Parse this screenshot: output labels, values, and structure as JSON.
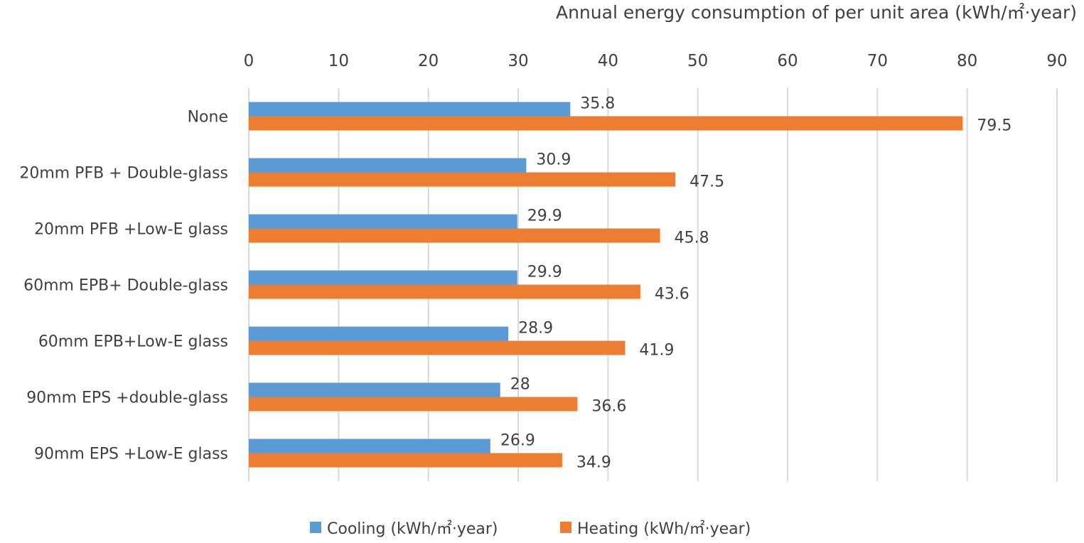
{
  "chart_data": {
    "type": "bar",
    "orientation": "horizontal",
    "title": "",
    "xlabel": "Annual energy consumption of per unit area (kWh/㎡·year)",
    "ylabel": "",
    "xlim": [
      0,
      90
    ],
    "xticks": [
      0,
      10,
      20,
      30,
      40,
      50,
      60,
      70,
      80,
      90
    ],
    "x_axis_position": "top",
    "grid": true,
    "legend_position": "bottom",
    "categories": [
      "None",
      "20mm PFB + Double-glass",
      "20mm PFB +Low-E glass",
      "60mm EPB+ Double-glass",
      "60mm EPB+Low-E glass",
      "90mm EPS +double-glass",
      "90mm EPS +Low-E glass"
    ],
    "series": [
      {
        "name": "Cooling (kWh/㎡·year)",
        "color": "#5b9bd5",
        "values": [
          35.8,
          30.9,
          29.9,
          29.9,
          28.9,
          28,
          26.9
        ],
        "labels": [
          "35.8",
          "30.9",
          "29.9",
          "29.9",
          "28.9",
          "28",
          "26.9"
        ]
      },
      {
        "name": "Heating (kWh/㎡·year)",
        "color": "#ed7d31",
        "values": [
          79.5,
          47.5,
          45.8,
          43.6,
          41.9,
          36.6,
          34.9
        ],
        "labels": [
          "79.5",
          "47.5",
          "45.8",
          "43.6",
          "41.9",
          "36.6",
          "34.9"
        ]
      }
    ]
  }
}
